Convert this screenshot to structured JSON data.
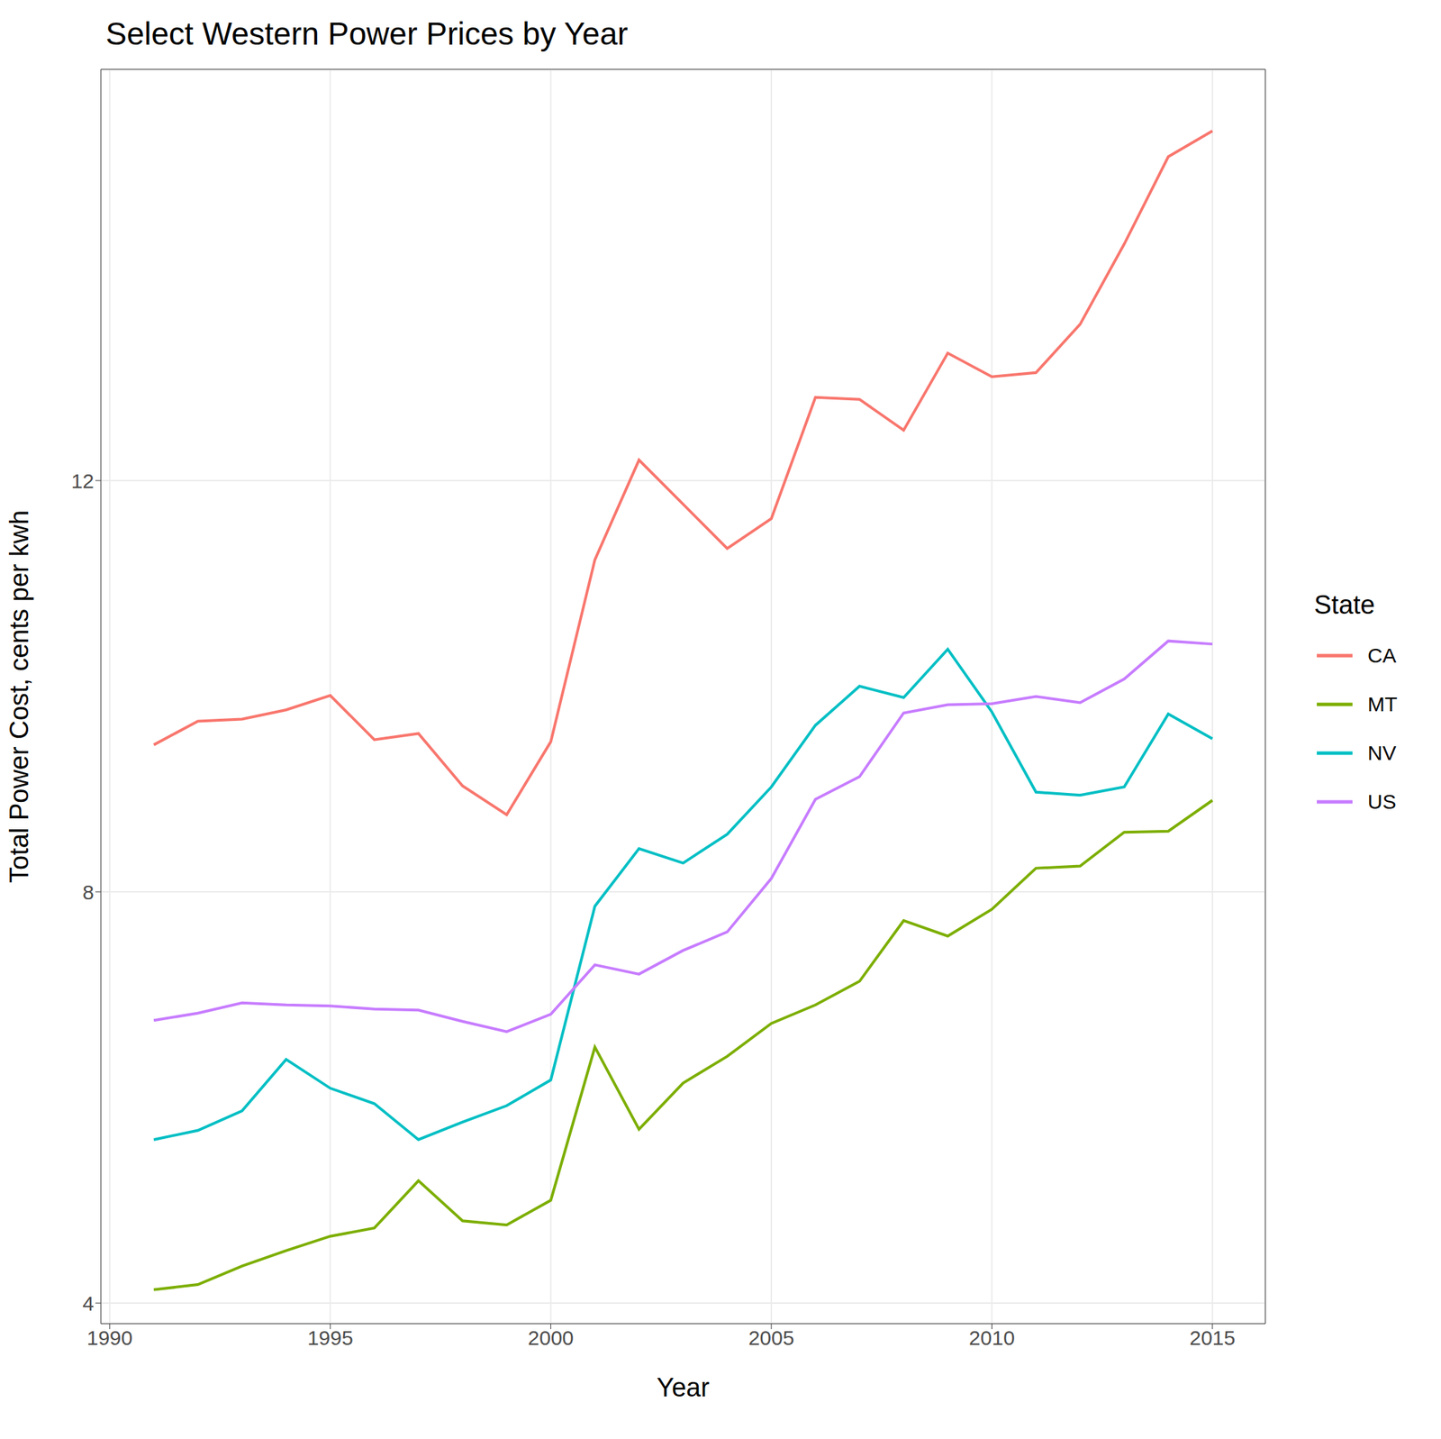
{
  "chart_data": {
    "type": "line",
    "title": "Select Western Power Prices by Year",
    "x_label": "Year",
    "y_label": "Total Power Cost, cents per kwh",
    "legend_title": "State",
    "legend": "right",
    "grid": true,
    "x": [
      1991,
      1992,
      1993,
      1994,
      1995,
      1996,
      1997,
      1998,
      1999,
      2000,
      2001,
      2002,
      2003,
      2004,
      2005,
      2006,
      2007,
      2008,
      2009,
      2010,
      2011,
      2012,
      2013,
      2014,
      2015
    ],
    "xlim": [
      1989.8,
      2016.2
    ],
    "xticks": [
      1990,
      1995,
      2000,
      2005,
      2010,
      2015
    ],
    "ylim": [
      3.8,
      16
    ],
    "yticks": [
      4,
      8,
      12
    ],
    "series": [
      {
        "name": "CA",
        "color": "#F8766D",
        "values": [
          9.43,
          9.66,
          9.68,
          9.77,
          9.91,
          9.48,
          9.54,
          9.03,
          8.75,
          9.46,
          11.23,
          12.2,
          11.77,
          11.34,
          11.63,
          12.81,
          12.79,
          12.49,
          13.24,
          13.01,
          13.05,
          13.52,
          14.3,
          15.15,
          15.4
        ]
      },
      {
        "name": "MT",
        "color": "#7CAE00",
        "values": [
          4.13,
          4.18,
          4.36,
          4.51,
          4.65,
          4.73,
          5.19,
          4.8,
          4.76,
          5.0,
          6.49,
          5.69,
          6.14,
          6.4,
          6.72,
          6.9,
          7.13,
          7.72,
          7.57,
          7.83,
          8.23,
          8.25,
          8.58,
          8.59,
          8.89
        ]
      },
      {
        "name": "NV",
        "color": "#00BFC4",
        "values": [
          5.59,
          5.68,
          5.87,
          6.37,
          6.09,
          5.94,
          5.59,
          5.76,
          5.92,
          6.17,
          7.86,
          8.42,
          8.28,
          8.56,
          9.02,
          9.62,
          10.0,
          9.89,
          10.36,
          9.75,
          8.97,
          8.94,
          9.02,
          9.73,
          9.49
        ]
      },
      {
        "name": "US",
        "color": "#C77CFF",
        "values": [
          6.75,
          6.82,
          6.92,
          6.9,
          6.89,
          6.86,
          6.85,
          6.74,
          6.64,
          6.81,
          7.29,
          7.2,
          7.43,
          7.61,
          8.13,
          8.9,
          9.12,
          9.74,
          9.82,
          9.83,
          9.9,
          9.84,
          10.07,
          10.44,
          10.41
        ]
      }
    ]
  }
}
